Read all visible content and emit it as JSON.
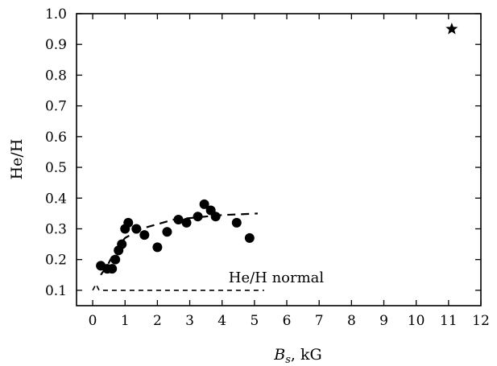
{
  "chart_data": {
    "type": "scatter",
    "xlabel_main": "B",
    "xlabel_sub": "s",
    "xlabel_unit": ", kG",
    "ylabel": "He/H",
    "xlim": [
      -0.5,
      12
    ],
    "ylim": [
      0.05,
      1.0
    ],
    "xticks": [
      "0",
      "1",
      "2",
      "3",
      "4",
      "5",
      "6",
      "7",
      "8",
      "9",
      "10",
      "11",
      "12"
    ],
    "yticks": [
      "0.1",
      "0.2",
      "0.3",
      "0.4",
      "0.5",
      "0.6",
      "0.7",
      "0.8",
      "0.9",
      "1.0"
    ],
    "grid": false,
    "series": [
      {
        "marker": "circle",
        "x": [
          0.25,
          0.45,
          0.6,
          0.7,
          0.8,
          0.9,
          1.0,
          1.1,
          1.35,
          1.6,
          2.0,
          2.3,
          2.65,
          2.9,
          3.25,
          3.45,
          3.65,
          3.8,
          4.45,
          4.85
        ],
        "y": [
          0.18,
          0.17,
          0.17,
          0.2,
          0.23,
          0.25,
          0.3,
          0.32,
          0.3,
          0.28,
          0.24,
          0.29,
          0.33,
          0.32,
          0.34,
          0.38,
          0.36,
          0.34,
          0.32,
          0.27
        ]
      },
      {
        "marker": "star",
        "x": [
          11.1
        ],
        "y": [
          0.95
        ]
      }
    ],
    "trend_line": {
      "style": "dashed",
      "x": [
        0.25,
        0.45,
        0.7,
        1.0,
        1.5,
        2.0,
        2.5,
        3.0,
        3.5,
        4.0,
        4.5,
        5.1
      ],
      "y": [
        0.15,
        0.18,
        0.23,
        0.27,
        0.3,
        0.315,
        0.33,
        0.335,
        0.34,
        0.345,
        0.347,
        0.35
      ]
    },
    "normal_line": {
      "style": "dashed",
      "x": [
        0.0,
        0.1,
        0.2,
        5.3
      ],
      "y": [
        0.1,
        0.12,
        0.1,
        0.1
      ]
    },
    "annotations": [
      {
        "text": "He/H normal",
        "x": 4.2,
        "y": 0.115
      }
    ]
  }
}
